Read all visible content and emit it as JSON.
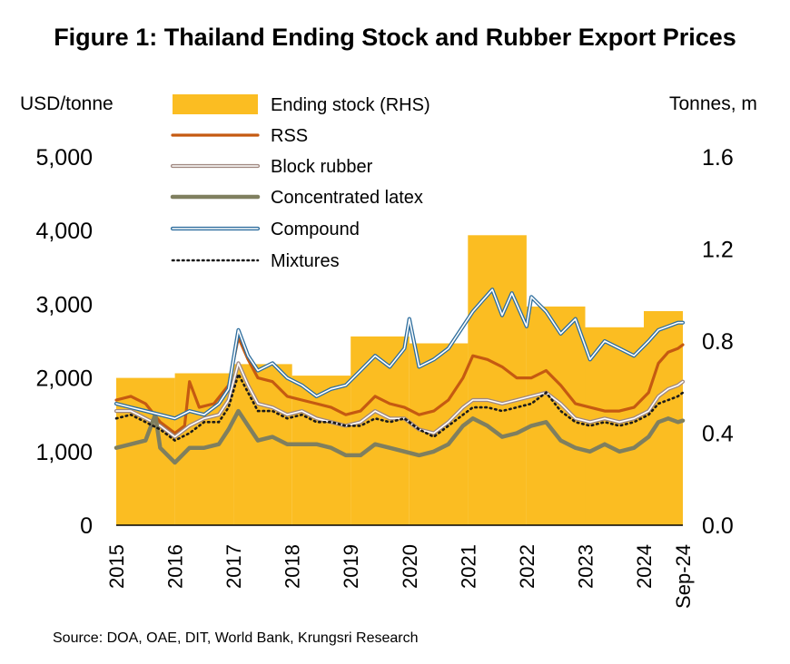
{
  "chart_data": {
    "type": "bar+line",
    "title": "Figure 1: Thailand Ending Stock and Rubber Export Prices",
    "left_axis_label": "USD/tonne",
    "right_axis_label": "Tonnes, m",
    "source": "Source: DOA, OAE, DIT, World Bank, Krungsri Research",
    "left_ylim": [
      0,
      5000
    ],
    "right_ylim": [
      0,
      1.6
    ],
    "left_ticks": [
      "0",
      "1,000",
      "2,000",
      "3,000",
      "4,000",
      "5,000"
    ],
    "right_ticks": [
      "0.0",
      "0.4",
      "0.8",
      "1.2",
      "1.6"
    ],
    "x_labels": [
      "2015",
      "2016",
      "2017",
      "2018",
      "2019",
      "2020",
      "2021",
      "2022",
      "2023",
      "2024",
      "Sep-24"
    ],
    "x_range": [
      "2015-01",
      "2024-09"
    ],
    "grid": false,
    "legend_position": "top-left",
    "legend": [
      {
        "key": "stock",
        "label": "Ending stock (RHS)"
      },
      {
        "key": "rss",
        "label": "RSS"
      },
      {
        "key": "block",
        "label": "Block rubber"
      },
      {
        "key": "latex",
        "label": "Concentrated latex"
      },
      {
        "key": "compound",
        "label": "Compound"
      },
      {
        "key": "mixtures",
        "label": "Mixtures"
      }
    ],
    "bars": {
      "name": "Ending stock (RHS)",
      "axis": "right",
      "color": "#FBBD22",
      "values": [
        {
          "x": "2015",
          "value": 0.64
        },
        {
          "x": "2016",
          "value": 0.66
        },
        {
          "x": "2017",
          "value": 0.7
        },
        {
          "x": "2018",
          "value": 0.65
        },
        {
          "x": "2019",
          "value": 0.82
        },
        {
          "x": "2020",
          "value": 0.79
        },
        {
          "x": "2021",
          "value": 1.26
        },
        {
          "x": "2022",
          "value": 0.95
        },
        {
          "x": "2023",
          "value": 0.86
        },
        {
          "x": "2024",
          "value": 0.93
        }
      ]
    },
    "series": [
      {
        "key": "rss",
        "name": "RSS",
        "axis": "left",
        "color": "#C55A11",
        "style": "solid",
        "points": [
          [
            "2015-01",
            1700
          ],
          [
            "2015-04",
            1750
          ],
          [
            "2015-07",
            1650
          ],
          [
            "2015-10",
            1400
          ],
          [
            "2016-01",
            1250
          ],
          [
            "2016-03",
            1350
          ],
          [
            "2016-04",
            1950
          ],
          [
            "2016-06",
            1600
          ],
          [
            "2016-09",
            1650
          ],
          [
            "2016-12",
            1900
          ],
          [
            "2017-02",
            2550
          ],
          [
            "2017-04",
            2250
          ],
          [
            "2017-06",
            2000
          ],
          [
            "2017-09",
            1950
          ],
          [
            "2017-12",
            1750
          ],
          [
            "2018-03",
            1700
          ],
          [
            "2018-06",
            1650
          ],
          [
            "2018-09",
            1600
          ],
          [
            "2018-12",
            1500
          ],
          [
            "2019-03",
            1550
          ],
          [
            "2019-06",
            1750
          ],
          [
            "2019-09",
            1650
          ],
          [
            "2019-12",
            1600
          ],
          [
            "2020-03",
            1500
          ],
          [
            "2020-06",
            1550
          ],
          [
            "2020-09",
            1700
          ],
          [
            "2020-12",
            2000
          ],
          [
            "2021-02",
            2300
          ],
          [
            "2021-05",
            2250
          ],
          [
            "2021-08",
            2150
          ],
          [
            "2021-11",
            2000
          ],
          [
            "2022-02",
            2000
          ],
          [
            "2022-05",
            2100
          ],
          [
            "2022-08",
            1900
          ],
          [
            "2022-11",
            1650
          ],
          [
            "2023-02",
            1600
          ],
          [
            "2023-05",
            1550
          ],
          [
            "2023-08",
            1550
          ],
          [
            "2023-11",
            1600
          ],
          [
            "2024-02",
            1800
          ],
          [
            "2024-04",
            2200
          ],
          [
            "2024-06",
            2350
          ],
          [
            "2024-08",
            2400
          ],
          [
            "2024-09",
            2450
          ]
        ]
      },
      {
        "key": "block",
        "name": "Block rubber",
        "axis": "left",
        "color": "#A08880",
        "style": "double",
        "points": [
          [
            "2015-01",
            1550
          ],
          [
            "2015-04",
            1550
          ],
          [
            "2015-07",
            1450
          ],
          [
            "2015-10",
            1350
          ],
          [
            "2016-01",
            1200
          ],
          [
            "2016-04",
            1350
          ],
          [
            "2016-07",
            1450
          ],
          [
            "2016-10",
            1500
          ],
          [
            "2016-12",
            1700
          ],
          [
            "2017-02",
            2200
          ],
          [
            "2017-04",
            1900
          ],
          [
            "2017-06",
            1650
          ],
          [
            "2017-09",
            1600
          ],
          [
            "2017-12",
            1500
          ],
          [
            "2018-03",
            1550
          ],
          [
            "2018-06",
            1450
          ],
          [
            "2018-09",
            1400
          ],
          [
            "2018-12",
            1350
          ],
          [
            "2019-03",
            1400
          ],
          [
            "2019-06",
            1550
          ],
          [
            "2019-09",
            1450
          ],
          [
            "2019-12",
            1450
          ],
          [
            "2020-03",
            1300
          ],
          [
            "2020-06",
            1250
          ],
          [
            "2020-09",
            1400
          ],
          [
            "2020-12",
            1600
          ],
          [
            "2021-02",
            1700
          ],
          [
            "2021-05",
            1700
          ],
          [
            "2021-08",
            1650
          ],
          [
            "2021-11",
            1700
          ],
          [
            "2022-02",
            1750
          ],
          [
            "2022-05",
            1800
          ],
          [
            "2022-08",
            1650
          ],
          [
            "2022-11",
            1450
          ],
          [
            "2023-02",
            1400
          ],
          [
            "2023-05",
            1450
          ],
          [
            "2023-08",
            1400
          ],
          [
            "2023-11",
            1450
          ],
          [
            "2024-02",
            1550
          ],
          [
            "2024-04",
            1750
          ],
          [
            "2024-06",
            1850
          ],
          [
            "2024-08",
            1900
          ],
          [
            "2024-09",
            1950
          ]
        ]
      },
      {
        "key": "latex",
        "name": "Concentrated latex",
        "axis": "left",
        "color": "#7F7F5F",
        "style": "thick",
        "points": [
          [
            "2015-01",
            1050
          ],
          [
            "2015-04",
            1100
          ],
          [
            "2015-07",
            1150
          ],
          [
            "2015-09",
            1500
          ],
          [
            "2015-10",
            1050
          ],
          [
            "2016-01",
            850
          ],
          [
            "2016-04",
            1050
          ],
          [
            "2016-07",
            1050
          ],
          [
            "2016-10",
            1100
          ],
          [
            "2016-12",
            1300
          ],
          [
            "2017-02",
            1550
          ],
          [
            "2017-04",
            1350
          ],
          [
            "2017-06",
            1150
          ],
          [
            "2017-09",
            1200
          ],
          [
            "2017-12",
            1100
          ],
          [
            "2018-03",
            1100
          ],
          [
            "2018-06",
            1100
          ],
          [
            "2018-09",
            1050
          ],
          [
            "2018-12",
            950
          ],
          [
            "2019-03",
            950
          ],
          [
            "2019-06",
            1100
          ],
          [
            "2019-09",
            1050
          ],
          [
            "2019-12",
            1000
          ],
          [
            "2020-03",
            950
          ],
          [
            "2020-06",
            1000
          ],
          [
            "2020-09",
            1100
          ],
          [
            "2020-12",
            1350
          ],
          [
            "2021-02",
            1450
          ],
          [
            "2021-05",
            1350
          ],
          [
            "2021-08",
            1200
          ],
          [
            "2021-11",
            1250
          ],
          [
            "2022-02",
            1350
          ],
          [
            "2022-05",
            1400
          ],
          [
            "2022-08",
            1150
          ],
          [
            "2022-11",
            1050
          ],
          [
            "2023-02",
            1000
          ],
          [
            "2023-05",
            1100
          ],
          [
            "2023-08",
            1000
          ],
          [
            "2023-11",
            1050
          ],
          [
            "2024-02",
            1200
          ],
          [
            "2024-04",
            1400
          ],
          [
            "2024-06",
            1450
          ],
          [
            "2024-08",
            1400
          ],
          [
            "2024-09",
            1420
          ]
        ]
      },
      {
        "key": "compound",
        "name": "Compound",
        "axis": "left",
        "color": "#2E6E9E",
        "style": "double",
        "points": [
          [
            "2015-01",
            1650
          ],
          [
            "2015-04",
            1600
          ],
          [
            "2015-07",
            1550
          ],
          [
            "2015-10",
            1500
          ],
          [
            "2016-01",
            1450
          ],
          [
            "2016-04",
            1550
          ],
          [
            "2016-07",
            1500
          ],
          [
            "2016-10",
            1650
          ],
          [
            "2016-12",
            1850
          ],
          [
            "2017-02",
            2650
          ],
          [
            "2017-04",
            2300
          ],
          [
            "2017-06",
            2100
          ],
          [
            "2017-09",
            2200
          ],
          [
            "2017-12",
            2000
          ],
          [
            "2018-03",
            1900
          ],
          [
            "2018-06",
            1750
          ],
          [
            "2018-09",
            1850
          ],
          [
            "2018-12",
            1900
          ],
          [
            "2019-03",
            2100
          ],
          [
            "2019-06",
            2300
          ],
          [
            "2019-09",
            2150
          ],
          [
            "2019-12",
            2400
          ],
          [
            "2020-01",
            2800
          ],
          [
            "2020-03",
            2150
          ],
          [
            "2020-06",
            2250
          ],
          [
            "2020-09",
            2400
          ],
          [
            "2020-12",
            2700
          ],
          [
            "2021-02",
            2900
          ],
          [
            "2021-04",
            3050
          ],
          [
            "2021-06",
            3200
          ],
          [
            "2021-08",
            2850
          ],
          [
            "2021-10",
            3150
          ],
          [
            "2022-01",
            2700
          ],
          [
            "2022-02",
            3100
          ],
          [
            "2022-05",
            2900
          ],
          [
            "2022-08",
            2600
          ],
          [
            "2022-11",
            2800
          ],
          [
            "2023-02",
            2250
          ],
          [
            "2023-05",
            2500
          ],
          [
            "2023-08",
            2400
          ],
          [
            "2023-11",
            2300
          ],
          [
            "2024-02",
            2500
          ],
          [
            "2024-04",
            2650
          ],
          [
            "2024-06",
            2700
          ],
          [
            "2024-08",
            2750
          ],
          [
            "2024-09",
            2750
          ]
        ]
      },
      {
        "key": "mixtures",
        "name": "Mixtures",
        "axis": "left",
        "color": "#1A1A1A",
        "style": "dotted",
        "points": [
          [
            "2015-01",
            1450
          ],
          [
            "2015-04",
            1500
          ],
          [
            "2015-07",
            1400
          ],
          [
            "2015-10",
            1300
          ],
          [
            "2016-01",
            1150
          ],
          [
            "2016-04",
            1250
          ],
          [
            "2016-07",
            1400
          ],
          [
            "2016-10",
            1400
          ],
          [
            "2016-12",
            1600
          ],
          [
            "2017-02",
            2050
          ],
          [
            "2017-04",
            1800
          ],
          [
            "2017-06",
            1550
          ],
          [
            "2017-09",
            1550
          ],
          [
            "2017-12",
            1450
          ],
          [
            "2018-03",
            1500
          ],
          [
            "2018-06",
            1400
          ],
          [
            "2018-09",
            1400
          ],
          [
            "2018-12",
            1350
          ],
          [
            "2019-03",
            1350
          ],
          [
            "2019-06",
            1450
          ],
          [
            "2019-09",
            1400
          ],
          [
            "2019-12",
            1450
          ],
          [
            "2020-03",
            1300
          ],
          [
            "2020-06",
            1200
          ],
          [
            "2020-09",
            1350
          ],
          [
            "2020-12",
            1500
          ],
          [
            "2021-02",
            1600
          ],
          [
            "2021-05",
            1600
          ],
          [
            "2021-08",
            1550
          ],
          [
            "2021-11",
            1600
          ],
          [
            "2022-02",
            1650
          ],
          [
            "2022-05",
            1800
          ],
          [
            "2022-08",
            1550
          ],
          [
            "2022-11",
            1400
          ],
          [
            "2023-02",
            1350
          ],
          [
            "2023-05",
            1400
          ],
          [
            "2023-08",
            1350
          ],
          [
            "2023-11",
            1400
          ],
          [
            "2024-02",
            1500
          ],
          [
            "2024-04",
            1650
          ],
          [
            "2024-06",
            1700
          ],
          [
            "2024-08",
            1750
          ],
          [
            "2024-09",
            1800
          ]
        ]
      }
    ]
  }
}
